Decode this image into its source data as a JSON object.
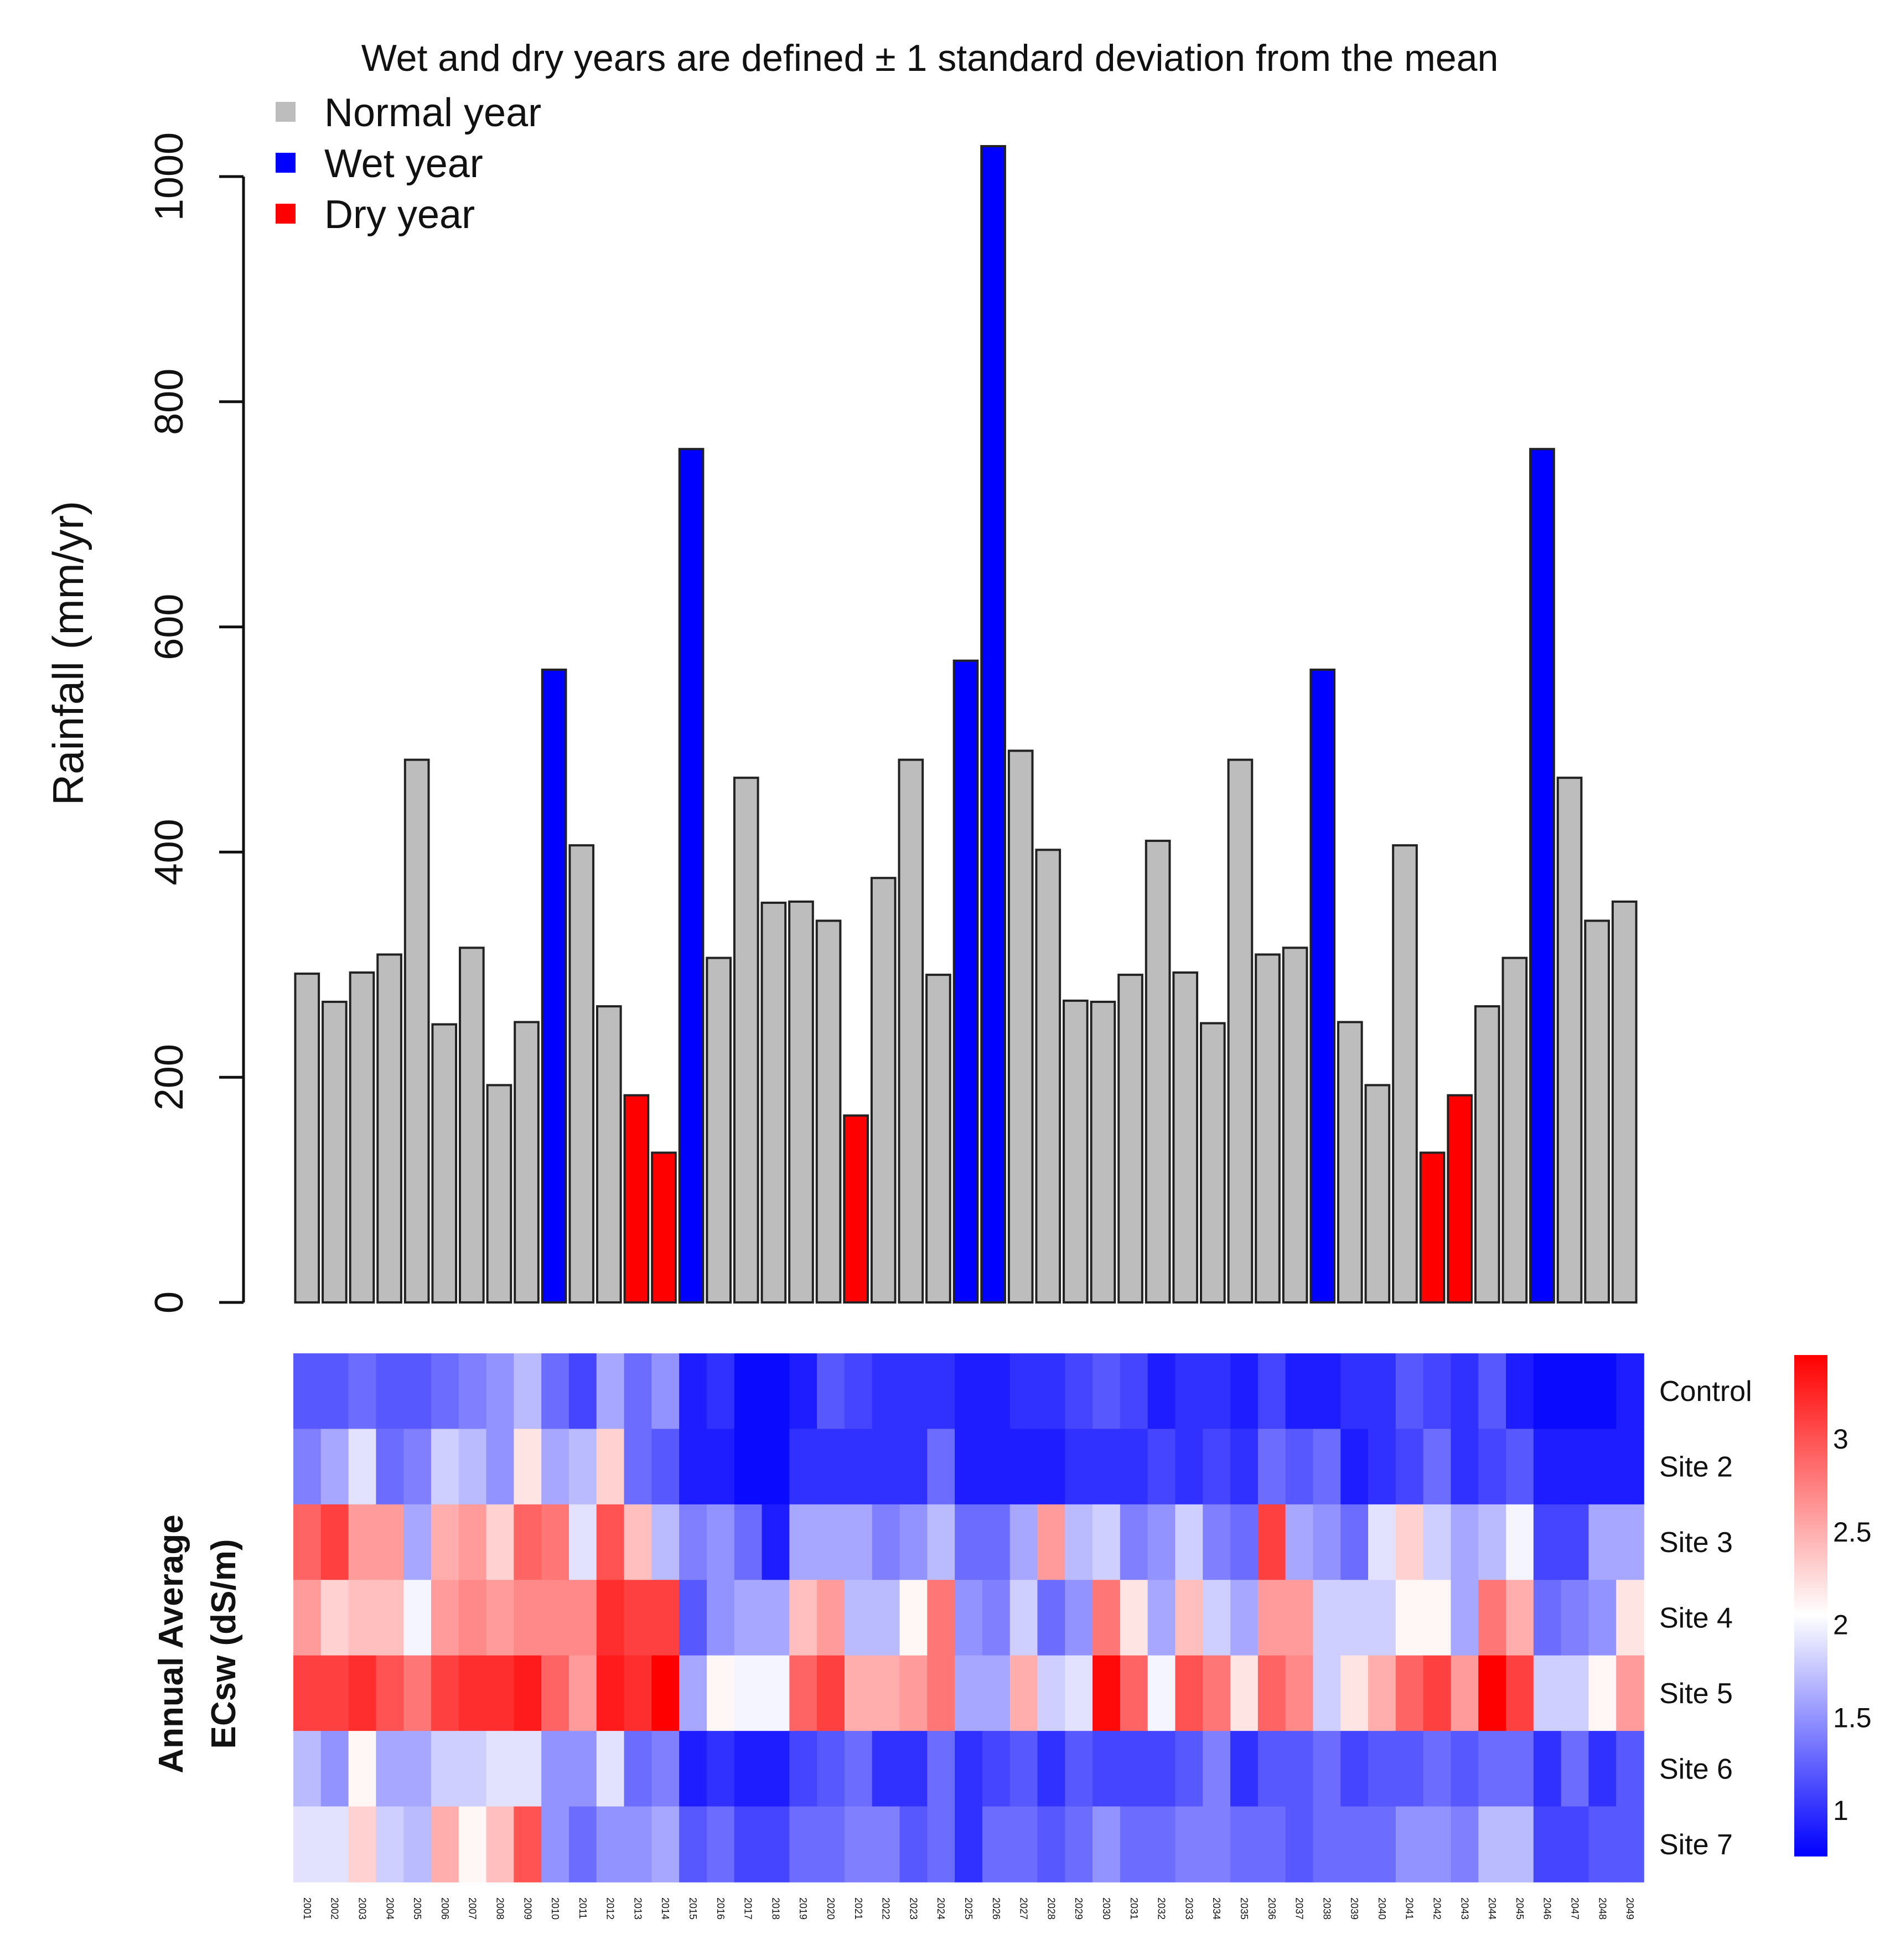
{
  "chart_data": [
    {
      "type": "bar",
      "title": "Wet and dry years are defined ± 1 standard deviation from the mean",
      "xlabel": "",
      "ylabel": "Rainfall (mm/yr)",
      "ylim": [
        0,
        1000
      ],
      "yticks": [
        0,
        200,
        400,
        600,
        800,
        1000
      ],
      "legend": {
        "position": "top-left",
        "items": [
          {
            "label": "Normal year",
            "color": "#bdbdbd"
          },
          {
            "label": "Wet year",
            "color": "#0000ff"
          },
          {
            "label": "Dry year",
            "color": "#ff0000"
          }
        ]
      },
      "categories": [
        "2001",
        "2002",
        "2003",
        "2004",
        "2005",
        "2006",
        "2007",
        "2008",
        "2009",
        "2010",
        "2011",
        "2012",
        "2013",
        "2014",
        "2015",
        "2016",
        "2017",
        "2018",
        "2019",
        "2020",
        "2021",
        "2022",
        "2023",
        "2024",
        "2025",
        "2026",
        "2027",
        "2028",
        "2029",
        "2030",
        "2031",
        "2032",
        "2033",
        "2034",
        "2035",
        "2036",
        "2037",
        "2038",
        "2039",
        "2040",
        "2041",
        "2042",
        "2043",
        "2044",
        "2045",
        "2046",
        "2047",
        "2048",
        "2049"
      ],
      "values": [
        292,
        267,
        293,
        309,
        482,
        247,
        315,
        193,
        249,
        562,
        406,
        263,
        184,
        133,
        758,
        306,
        466,
        355,
        356,
        339,
        166,
        377,
        482,
        291,
        570,
        1027,
        490,
        402,
        268,
        267,
        291,
        410,
        293,
        248,
        482,
        309,
        315,
        562,
        249,
        193,
        406,
        133,
        184,
        263,
        306,
        758,
        466,
        339,
        356
      ],
      "year_type": [
        "normal",
        "normal",
        "normal",
        "normal",
        "normal",
        "normal",
        "normal",
        "normal",
        "normal",
        "wet",
        "normal",
        "normal",
        "dry",
        "dry",
        "wet",
        "normal",
        "normal",
        "normal",
        "normal",
        "normal",
        "dry",
        "normal",
        "normal",
        "normal",
        "wet",
        "wet",
        "normal",
        "normal",
        "normal",
        "normal",
        "normal",
        "normal",
        "normal",
        "normal",
        "normal",
        "normal",
        "normal",
        "wet",
        "normal",
        "normal",
        "normal",
        "dry",
        "dry",
        "normal",
        "normal",
        "wet",
        "normal",
        "normal",
        "normal"
      ],
      "colors": {
        "normal": "#bdbdbd",
        "wet": "#0000ff",
        "dry": "#ff0000"
      }
    },
    {
      "type": "heatmap",
      "ylabel_line1": "Annual Average",
      "ylabel_line2": "ECsw (dS/m)",
      "rows": [
        "Control",
        "Site 2",
        "Site 3",
        "Site 4",
        "Site 5",
        "Site 6",
        "Site 7"
      ],
      "columns": [
        "2001",
        "2002",
        "2003",
        "2004",
        "2005",
        "2006",
        "2007",
        "2008",
        "2009",
        "2010",
        "2011",
        "2012",
        "2013",
        "2014",
        "2015",
        "2016",
        "2017",
        "2018",
        "2019",
        "2020",
        "2021",
        "2022",
        "2023",
        "2024",
        "2025",
        "2026",
        "2027",
        "2028",
        "2029",
        "2030",
        "2031",
        "2032",
        "2033",
        "2034",
        "2035",
        "2036",
        "2037",
        "2038",
        "2039",
        "2040",
        "2041",
        "2042",
        "2043",
        "2044",
        "2045",
        "2046",
        "2047",
        "2048",
        "2049"
      ],
      "colorscale": {
        "low": "#0000ff",
        "mid": "#ffffff",
        "high": "#ff0000",
        "min": 0.75,
        "mid_value": 2.05,
        "max": 3.45
      },
      "colorbar_ticks": [
        1,
        1.5,
        2,
        2.5,
        3
      ],
      "values": [
        [
          1.2,
          1.2,
          1.3,
          1.2,
          1.2,
          1.3,
          1.4,
          1.5,
          1.7,
          1.3,
          1.1,
          1.6,
          1.3,
          1.5,
          0.9,
          1.0,
          0.8,
          0.8,
          0.9,
          1.2,
          1.1,
          1.0,
          1.0,
          1.0,
          0.9,
          0.9,
          1.0,
          1.0,
          1.1,
          1.2,
          1.1,
          0.9,
          1.0,
          1.0,
          0.9,
          1.1,
          0.9,
          0.9,
          1.0,
          1.0,
          1.2,
          1.1,
          1.0,
          1.2,
          0.9,
          0.8,
          0.8,
          0.8,
          0.9
        ],
        [
          1.4,
          1.6,
          1.9,
          1.3,
          1.4,
          1.8,
          1.7,
          1.5,
          2.2,
          1.6,
          1.7,
          2.3,
          1.3,
          1.2,
          0.9,
          0.9,
          0.8,
          0.8,
          1.0,
          1.0,
          1.0,
          1.0,
          1.0,
          1.3,
          0.9,
          0.9,
          0.9,
          0.9,
          1.0,
          1.0,
          1.0,
          1.1,
          1.0,
          1.1,
          1.0,
          1.3,
          1.2,
          1.3,
          0.9,
          1.0,
          1.1,
          1.3,
          1.0,
          1.1,
          1.2,
          0.9,
          0.9,
          0.9,
          0.9
        ],
        [
          2.9,
          3.1,
          2.6,
          2.6,
          1.6,
          2.5,
          2.6,
          2.3,
          2.9,
          2.8,
          1.9,
          3.0,
          2.4,
          1.7,
          1.4,
          1.5,
          1.3,
          0.9,
          1.6,
          1.6,
          1.6,
          1.4,
          1.5,
          1.7,
          1.3,
          1.3,
          1.6,
          2.6,
          1.7,
          1.8,
          1.4,
          1.5,
          1.8,
          1.4,
          1.3,
          3.1,
          1.6,
          1.5,
          1.3,
          1.9,
          2.3,
          1.8,
          1.6,
          1.7,
          2.0,
          1.1,
          1.1,
          1.6,
          1.6
        ],
        [
          2.6,
          2.3,
          2.4,
          2.4,
          2.0,
          2.6,
          2.7,
          2.6,
          2.7,
          2.7,
          2.7,
          3.2,
          3.1,
          3.1,
          1.2,
          1.5,
          1.6,
          1.6,
          2.4,
          2.6,
          1.7,
          1.7,
          2.1,
          2.8,
          1.5,
          1.4,
          1.8,
          1.3,
          1.5,
          2.8,
          2.2,
          1.6,
          2.4,
          1.8,
          1.6,
          2.6,
          2.6,
          1.8,
          1.8,
          1.8,
          2.1,
          2.1,
          1.6,
          2.8,
          2.5,
          1.3,
          1.4,
          1.5,
          2.2
        ],
        [
          3.1,
          3.1,
          3.2,
          3.0,
          2.8,
          3.1,
          3.2,
          3.2,
          3.3,
          2.9,
          2.6,
          3.3,
          3.2,
          3.5,
          1.6,
          2.1,
          2.0,
          2.0,
          2.9,
          3.1,
          2.5,
          2.5,
          2.6,
          2.8,
          1.6,
          1.6,
          2.5,
          1.8,
          1.9,
          3.4,
          2.9,
          2.0,
          3.0,
          2.8,
          2.2,
          2.9,
          2.7,
          1.8,
          2.2,
          2.5,
          2.9,
          3.1,
          2.6,
          3.5,
          3.1,
          1.8,
          1.8,
          2.1,
          2.6
        ],
        [
          1.7,
          1.5,
          2.1,
          1.6,
          1.6,
          1.8,
          1.8,
          1.9,
          1.9,
          1.5,
          1.5,
          1.9,
          1.3,
          1.4,
          0.9,
          1.0,
          0.9,
          0.9,
          1.1,
          1.2,
          1.3,
          1.0,
          1.0,
          1.3,
          1.0,
          1.1,
          1.2,
          1.0,
          1.2,
          1.1,
          1.1,
          1.1,
          1.2,
          1.4,
          1.0,
          1.2,
          1.2,
          1.3,
          1.1,
          1.2,
          1.2,
          1.3,
          1.2,
          1.3,
          1.3,
          1.0,
          1.3,
          1.0,
          1.2
        ],
        [
          1.9,
          1.9,
          2.3,
          1.8,
          1.7,
          2.5,
          2.1,
          2.4,
          3.0,
          1.5,
          1.3,
          1.5,
          1.5,
          1.6,
          1.2,
          1.3,
          1.1,
          1.1,
          1.3,
          1.3,
          1.4,
          1.4,
          1.2,
          1.3,
          1.0,
          1.3,
          1.3,
          1.2,
          1.3,
          1.5,
          1.3,
          1.3,
          1.4,
          1.4,
          1.3,
          1.3,
          1.2,
          1.3,
          1.3,
          1.3,
          1.5,
          1.5,
          1.4,
          1.7,
          1.7,
          1.1,
          1.1,
          1.2,
          1.2
        ]
      ]
    }
  ]
}
